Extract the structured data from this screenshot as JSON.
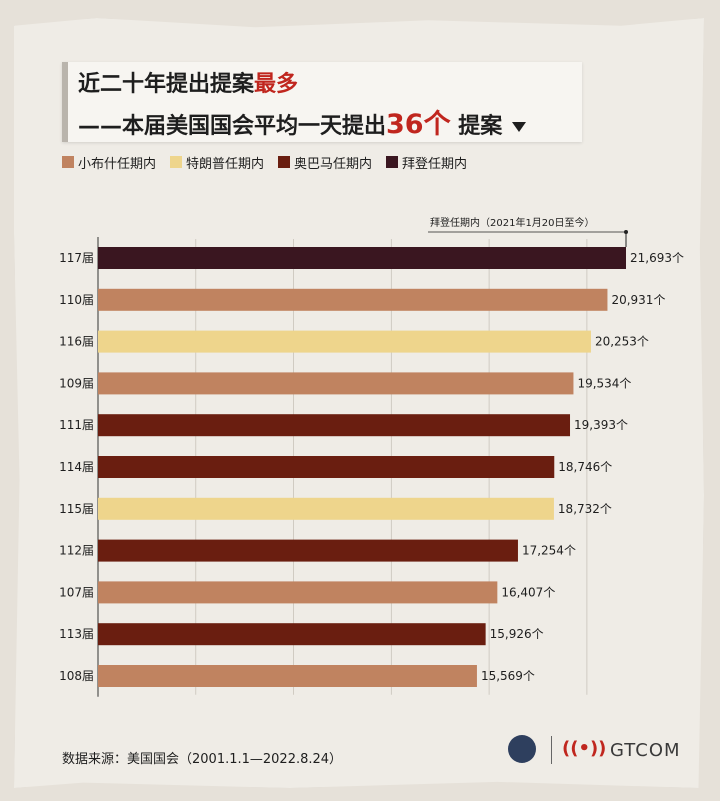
{
  "title": {
    "line1_prefix": "近二十年提出提案",
    "line1_highlight": "最多",
    "line2_prefix": "——本届美国国会平均一天提出",
    "line2_highlight": "36个",
    "line2_suffix": "提案"
  },
  "legend": [
    {
      "label": "小布什任期内",
      "color": "#c08360"
    },
    {
      "label": "特朗普任期内",
      "color": "#eed58c"
    },
    {
      "label": "奥巴马任期内",
      "color": "#6a1e10"
    },
    {
      "label": "拜登任期内",
      "color": "#3a1620"
    }
  ],
  "annotation": "拜登任期内（2021年1月20日至今）",
  "source": "数据来源：美国国会（2001.1.1—2022.8.24）",
  "logo_text": "GTCOM",
  "chart_data": {
    "type": "bar",
    "orientation": "horizontal",
    "categories": [
      "117届",
      "110届",
      "116届",
      "109届",
      "111届",
      "114届",
      "115届",
      "112届",
      "107届",
      "113届",
      "108届"
    ],
    "values": [
      21693,
      20931,
      20253,
      19534,
      19393,
      18746,
      18732,
      17254,
      16407,
      15926,
      15569
    ],
    "value_labels": [
      "21,693个",
      "20,931个",
      "20,253个",
      "19,534个",
      "19,393个",
      "18,746个",
      "18,732个",
      "17,254个",
      "16,407个",
      "15,926个",
      "15,569个"
    ],
    "bar_colors": [
      "#3a1620",
      "#c08360",
      "#eed58c",
      "#c08360",
      "#6a1e10",
      "#6a1e10",
      "#eed58c",
      "#6a1e10",
      "#c08360",
      "#6a1e10",
      "#c08360"
    ],
    "xlim": [
      0,
      21693
    ],
    "grid": true
  }
}
